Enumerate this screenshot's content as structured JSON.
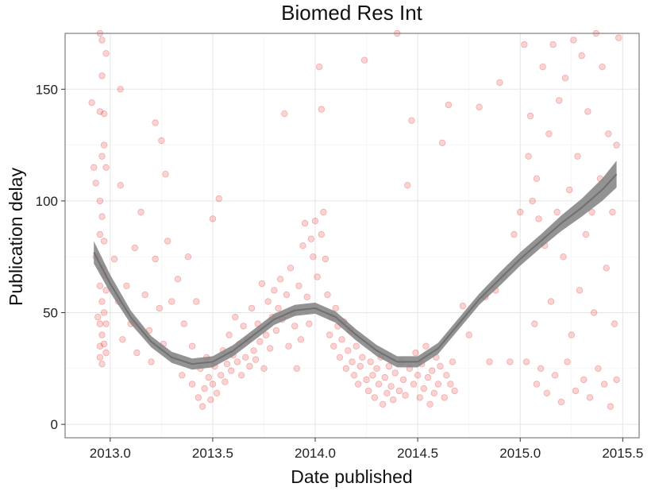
{
  "chart_data": {
    "type": "scatter",
    "title": "Biomed Res Int",
    "xlabel": "Date published",
    "ylabel": "Publication delay",
    "xlim": [
      2012.78,
      2015.58
    ],
    "ylim": [
      -6,
      175
    ],
    "x_ticks": [
      2013.0,
      2013.5,
      2014.0,
      2014.5,
      2015.0,
      2015.5
    ],
    "x_tick_labels": [
      "2013.0",
      "2013.5",
      "2014.0",
      "2014.5",
      "2015.0",
      "2015.5"
    ],
    "y_ticks": [
      0,
      50,
      100,
      150
    ],
    "y_tick_labels": [
      "0",
      "50",
      "100",
      "150"
    ],
    "grid": true,
    "legend": "none",
    "point_color": "#e31a1c",
    "point_opacity": 0.12,
    "smooth_color": "#808080",
    "series": [
      {
        "points": [
          [
            2012.91,
            144
          ],
          [
            2012.92,
            115
          ],
          [
            2012.93,
            108
          ],
          [
            2012.93,
            75
          ],
          [
            2012.94,
            48
          ],
          [
            2012.95,
            35
          ],
          [
            2012.95,
            175
          ],
          [
            2012.95,
            140
          ],
          [
            2012.95,
            100
          ],
          [
            2012.95,
            85
          ],
          [
            2012.95,
            62
          ],
          [
            2012.95,
            45
          ],
          [
            2012.95,
            30
          ],
          [
            2012.96,
            172
          ],
          [
            2012.96,
            156
          ],
          [
            2012.96,
            120
          ],
          [
            2012.96,
            93
          ],
          [
            2012.96,
            70
          ],
          [
            2012.96,
            55
          ],
          [
            2012.96,
            40
          ],
          [
            2012.96,
            27
          ],
          [
            2012.97,
            139
          ],
          [
            2012.97,
            125
          ],
          [
            2012.97,
            82
          ],
          [
            2012.97,
            67
          ],
          [
            2012.97,
            50
          ],
          [
            2012.97,
            36
          ],
          [
            2012.98,
            166
          ],
          [
            2012.98,
            115
          ],
          [
            2012.98,
            60
          ],
          [
            2012.98,
            45
          ],
          [
            2012.98,
            32
          ],
          [
            2013.02,
            74
          ],
          [
            2013.04,
            55
          ],
          [
            2013.05,
            150
          ],
          [
            2013.05,
            107
          ],
          [
            2013.06,
            38
          ],
          [
            2013.08,
            62
          ],
          [
            2013.1,
            45
          ],
          [
            2013.12,
            79
          ],
          [
            2013.13,
            32
          ],
          [
            2013.15,
            95
          ],
          [
            2013.17,
            58
          ],
          [
            2013.19,
            42
          ],
          [
            2013.2,
            28
          ],
          [
            2013.22,
            135
          ],
          [
            2013.22,
            74
          ],
          [
            2013.24,
            52
          ],
          [
            2013.25,
            127
          ],
          [
            2013.26,
            36
          ],
          [
            2013.27,
            112
          ],
          [
            2013.28,
            82
          ],
          [
            2013.3,
            55
          ],
          [
            2013.31,
            30
          ],
          [
            2013.33,
            65
          ],
          [
            2013.35,
            22
          ],
          [
            2013.36,
            45
          ],
          [
            2013.38,
            75
          ],
          [
            2013.4,
            18
          ],
          [
            2013.4,
            35
          ],
          [
            2013.42,
            55
          ],
          [
            2013.43,
            12
          ],
          [
            2013.44,
            25
          ],
          [
            2013.45,
            8
          ],
          [
            2013.46,
            16
          ],
          [
            2013.47,
            30
          ],
          [
            2013.48,
            21
          ],
          [
            2013.49,
            11
          ],
          [
            2013.5,
            18
          ],
          [
            2013.5,
            92
          ],
          [
            2013.51,
            26
          ],
          [
            2013.52,
            14
          ],
          [
            2013.53,
            101
          ],
          [
            2013.54,
            22
          ],
          [
            2013.55,
            33
          ],
          [
            2013.56,
            19
          ],
          [
            2013.57,
            27
          ],
          [
            2013.58,
            40
          ],
          [
            2013.59,
            24
          ],
          [
            2013.6,
            31
          ],
          [
            2013.61,
            48
          ],
          [
            2013.62,
            28
          ],
          [
            2013.63,
            36
          ],
          [
            2013.64,
            22
          ],
          [
            2013.65,
            44
          ],
          [
            2013.66,
            30
          ],
          [
            2013.67,
            38
          ],
          [
            2013.68,
            26
          ],
          [
            2013.69,
            52
          ],
          [
            2013.7,
            33
          ],
          [
            2013.71,
            29
          ],
          [
            2013.72,
            45
          ],
          [
            2013.73,
            37
          ],
          [
            2013.74,
            63
          ],
          [
            2013.75,
            25
          ],
          [
            2013.76,
            40
          ],
          [
            2013.77,
            55
          ],
          [
            2013.78,
            34
          ],
          [
            2013.79,
            48
          ],
          [
            2013.8,
            60
          ],
          [
            2013.81,
            42
          ],
          [
            2013.82,
            52
          ],
          [
            2013.83,
            65
          ],
          [
            2013.84,
            47
          ],
          [
            2013.85,
            139
          ],
          [
            2013.86,
            58
          ],
          [
            2013.87,
            35
          ],
          [
            2013.88,
            70
          ],
          [
            2013.89,
            50
          ],
          [
            2013.9,
            44
          ],
          [
            2013.91,
            25
          ],
          [
            2013.92,
            62
          ],
          [
            2013.93,
            38
          ],
          [
            2013.94,
            80
          ],
          [
            2013.95,
            90
          ],
          [
            2013.96,
            57
          ],
          [
            2013.97,
            45
          ],
          [
            2013.98,
            83
          ],
          [
            2013.99,
            75
          ],
          [
            2014.0,
            91
          ],
          [
            2014.01,
            66
          ],
          [
            2014.02,
            160
          ],
          [
            2014.03,
            141
          ],
          [
            2014.03,
            85
          ],
          [
            2014.04,
            95
          ],
          [
            2014.05,
            74
          ],
          [
            2014.06,
            58
          ],
          [
            2014.07,
            40
          ],
          [
            2014.08,
            48
          ],
          [
            2014.09,
            35
          ],
          [
            2014.1,
            52
          ],
          [
            2014.11,
            44
          ],
          [
            2014.12,
            30
          ],
          [
            2014.13,
            38
          ],
          [
            2014.14,
            46
          ],
          [
            2014.15,
            25
          ],
          [
            2014.16,
            33
          ],
          [
            2014.17,
            42
          ],
          [
            2014.18,
            28
          ],
          [
            2014.19,
            22
          ],
          [
            2014.2,
            35
          ],
          [
            2014.21,
            18
          ],
          [
            2014.22,
            26
          ],
          [
            2014.23,
            30
          ],
          [
            2014.24,
            163
          ],
          [
            2014.25,
            20
          ],
          [
            2014.26,
            15
          ],
          [
            2014.27,
            28
          ],
          [
            2014.28,
            22
          ],
          [
            2014.29,
            12
          ],
          [
            2014.3,
            25
          ],
          [
            2014.31,
            18
          ],
          [
            2014.32,
            30
          ],
          [
            2014.33,
            9
          ],
          [
            2014.34,
            21
          ],
          [
            2014.35,
            14
          ],
          [
            2014.36,
            26
          ],
          [
            2014.37,
            17
          ],
          [
            2014.38,
            11
          ],
          [
            2014.39,
            23
          ],
          [
            2014.4,
            175
          ],
          [
            2014.41,
            15
          ],
          [
            2014.42,
            28
          ],
          [
            2014.43,
            20
          ],
          [
            2014.44,
            13
          ],
          [
            2014.45,
            107
          ],
          [
            2014.46,
            25
          ],
          [
            2014.47,
            136
          ],
          [
            2014.48,
            18
          ],
          [
            2014.49,
            32
          ],
          [
            2014.5,
            22
          ],
          [
            2014.51,
            12
          ],
          [
            2014.52,
            27
          ],
          [
            2014.53,
            16
          ],
          [
            2014.54,
            35
          ],
          [
            2014.55,
            21
          ],
          [
            2014.56,
            9
          ],
          [
            2014.57,
            24
          ],
          [
            2014.58,
            14
          ],
          [
            2014.59,
            30
          ],
          [
            2014.6,
            18
          ],
          [
            2014.61,
            26
          ],
          [
            2014.62,
            126
          ],
          [
            2014.63,
            12
          ],
          [
            2014.64,
            22
          ],
          [
            2014.65,
            143
          ],
          [
            2014.66,
            18
          ],
          [
            2014.67,
            28
          ],
          [
            2014.68,
            15
          ],
          [
            2014.72,
            53
          ],
          [
            2014.75,
            40
          ],
          [
            2014.8,
            142
          ],
          [
            2014.83,
            57
          ],
          [
            2014.85,
            28
          ],
          [
            2014.88,
            60
          ],
          [
            2014.9,
            153
          ],
          [
            2014.92,
            66
          ],
          [
            2014.95,
            28
          ],
          [
            2014.97,
            85
          ],
          [
            2015.0,
            95
          ],
          [
            2015.02,
            170
          ],
          [
            2015.03,
            28
          ],
          [
            2015.04,
            120
          ],
          [
            2015.05,
            138
          ],
          [
            2015.06,
            100
          ],
          [
            2015.07,
            45
          ],
          [
            2015.08,
            110
          ],
          [
            2015.08,
            18
          ],
          [
            2015.09,
            92
          ],
          [
            2015.1,
            25
          ],
          [
            2015.11,
            160
          ],
          [
            2015.12,
            80
          ],
          [
            2015.13,
            14
          ],
          [
            2015.14,
            130
          ],
          [
            2015.15,
            55
          ],
          [
            2015.16,
            170
          ],
          [
            2015.17,
            22
          ],
          [
            2015.18,
            95
          ],
          [
            2015.19,
            145
          ],
          [
            2015.2,
            10
          ],
          [
            2015.21,
            75
          ],
          [
            2015.22,
            155
          ],
          [
            2015.23,
            28
          ],
          [
            2015.24,
            105
          ],
          [
            2015.25,
            40
          ],
          [
            2015.26,
            172
          ],
          [
            2015.27,
            15
          ],
          [
            2015.28,
            120
          ],
          [
            2015.29,
            60
          ],
          [
            2015.3,
            165
          ],
          [
            2015.31,
            20
          ],
          [
            2015.32,
            85
          ],
          [
            2015.33,
            140
          ],
          [
            2015.34,
            12
          ],
          [
            2015.35,
            95
          ],
          [
            2015.36,
            50
          ],
          [
            2015.37,
            175
          ],
          [
            2015.38,
            25
          ],
          [
            2015.39,
            110
          ],
          [
            2015.4,
            160
          ],
          [
            2015.41,
            18
          ],
          [
            2015.42,
            70
          ],
          [
            2015.43,
            130
          ],
          [
            2015.44,
            8
          ],
          [
            2015.45,
            95
          ],
          [
            2015.46,
            45
          ],
          [
            2015.47,
            125
          ],
          [
            2015.47,
            20
          ],
          [
            2015.48,
            173
          ]
        ]
      }
    ],
    "smooth_curve": {
      "x": [
        2012.92,
        2013.0,
        2013.1,
        2013.2,
        2013.3,
        2013.4,
        2013.5,
        2013.6,
        2013.7,
        2013.8,
        2013.9,
        2014.0,
        2014.1,
        2014.2,
        2014.3,
        2014.4,
        2014.5,
        2014.6,
        2014.7,
        2014.8,
        2014.9,
        2015.0,
        2015.1,
        2015.2,
        2015.3,
        2015.4,
        2015.47
      ],
      "y": [
        77,
        63,
        48,
        37,
        30,
        27,
        28,
        33,
        40,
        47,
        51,
        52,
        48,
        40,
        33,
        28,
        28,
        34,
        45,
        56,
        65,
        74,
        82,
        90,
        97,
        105,
        112
      ],
      "band": [
        5,
        4,
        3,
        2.5,
        2.5,
        2.5,
        2.5,
        2.5,
        2.5,
        2.5,
        2.5,
        2.5,
        2.5,
        2.5,
        2.5,
        2.5,
        2.5,
        2.5,
        2.5,
        2.5,
        3,
        3,
        3,
        3.5,
        4,
        5,
        6
      ]
    }
  }
}
